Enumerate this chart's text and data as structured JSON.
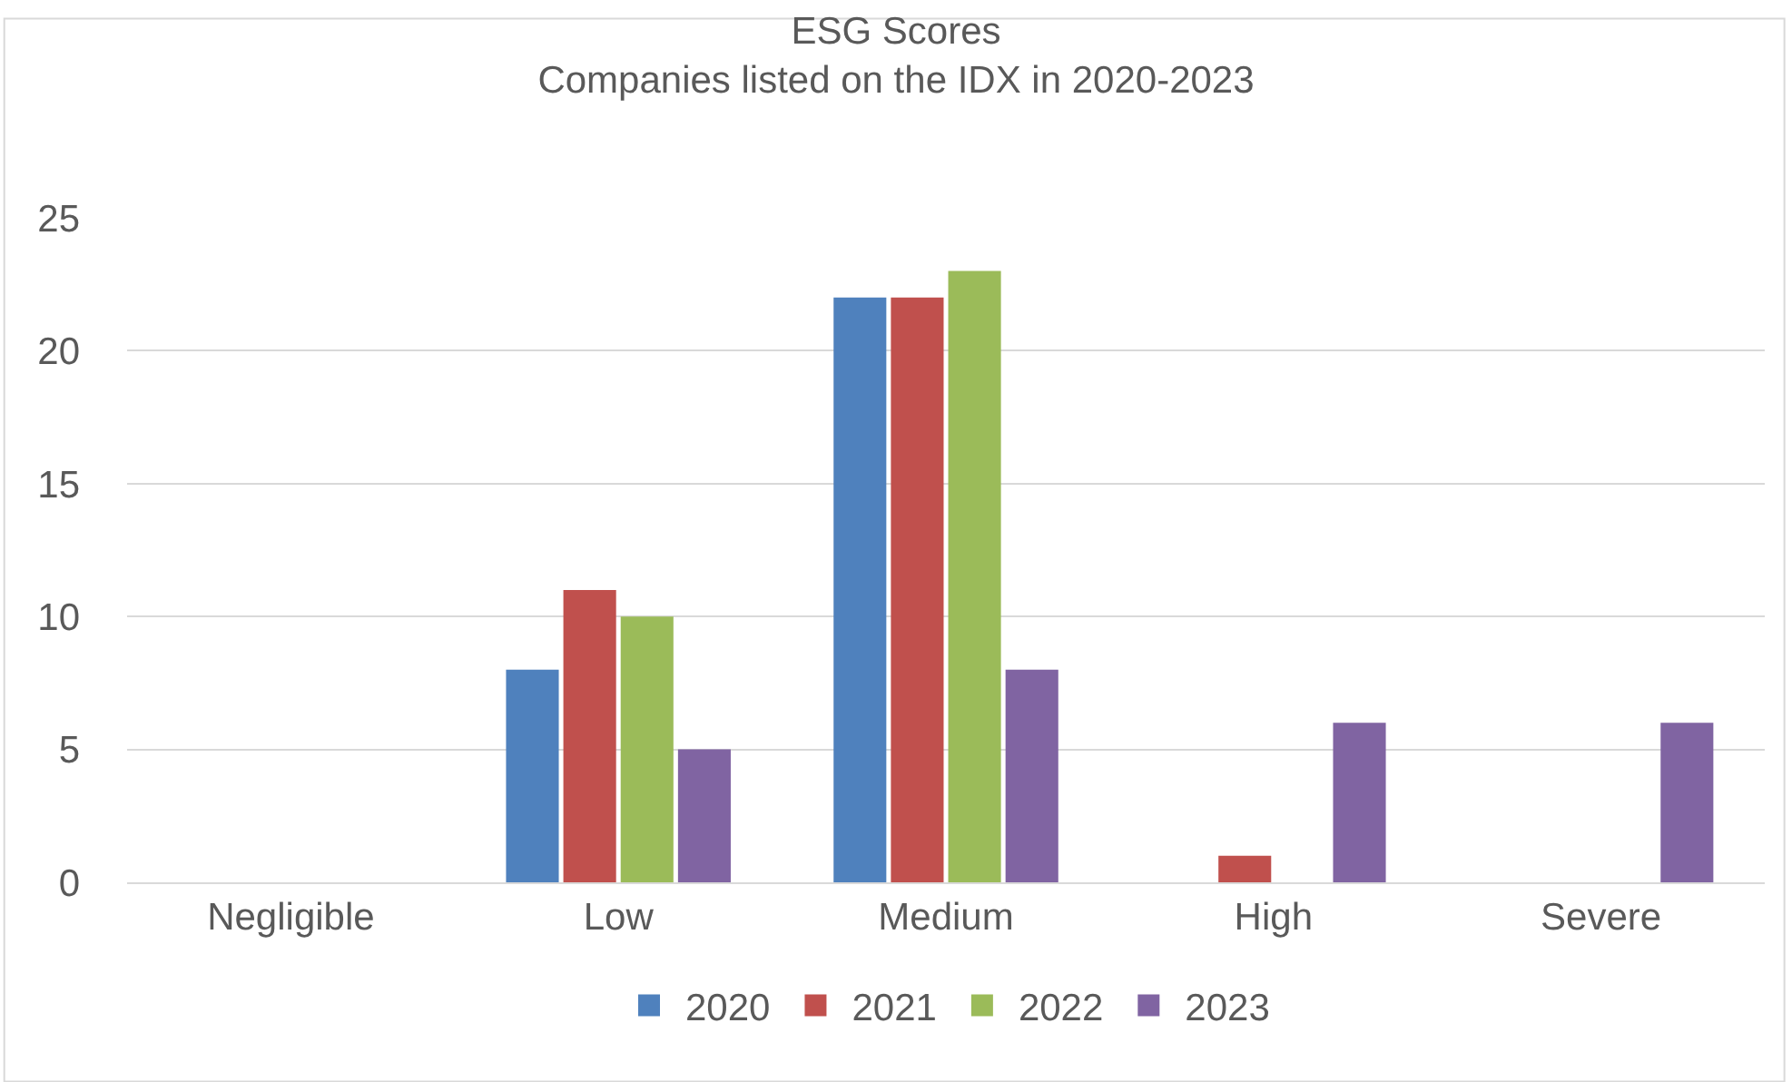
{
  "chart_data": {
    "type": "bar",
    "title": "ESG Scores",
    "subtitle": "Companies listed on the IDX in 2020-2023",
    "categories": [
      "Negligible",
      "Low",
      "Medium",
      "High",
      "Severe"
    ],
    "series": [
      {
        "name": "2020",
        "color": "#4f81bd",
        "values": [
          0,
          8,
          22,
          0,
          0
        ]
      },
      {
        "name": "2021",
        "color": "#c0504d",
        "values": [
          0,
          11,
          22,
          1,
          0
        ]
      },
      {
        "name": "2022",
        "color": "#9bbb59",
        "values": [
          0,
          10,
          23,
          0,
          0
        ]
      },
      {
        "name": "2023",
        "color": "#8064a2",
        "values": [
          0,
          5,
          8,
          6,
          6
        ]
      }
    ],
    "ylim": [
      0,
      25
    ],
    "yticks": [
      0,
      5,
      10,
      15,
      20,
      25
    ],
    "grid": "y",
    "legend": "bottom"
  }
}
